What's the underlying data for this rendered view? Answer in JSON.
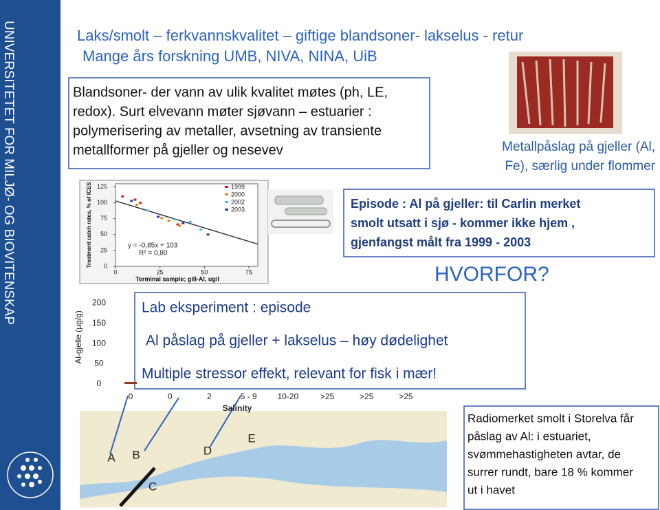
{
  "sidebar": {
    "text": "UNIVERSITETET FOR MILJØ- OG BIOVITENSKAP"
  },
  "header": {
    "title": "Laks/smolt – ferkvannskvalitet – giftige blandsoner-  lakselus  - retur",
    "subtitle": "Mange års forskning UMB, NIVA, NINA, UiB"
  },
  "intro_box": {
    "lines": [
      "Blandsoner- der vann av ulik kvalitet møtes (ph, LE,",
      "redox). Surt elvevann møter sjøvann – estuarier :",
      "polymerisering av metaller, avsetning av transiente",
      "metallformer på gjeller og nesevev"
    ]
  },
  "gill_caption": {
    "lines": [
      "Metallpåslag på gjeller (Al,",
      "Fe), særlig under flommer"
    ]
  },
  "episode_box": {
    "lines": [
      "Episode : Al på gjeller: til Carlin merket",
      "smolt  utsatt i sjø - kommer ikke hjem ,",
      "gjenfangst målt fra 1999 - 2003"
    ]
  },
  "why": "HVORFOR?",
  "lab_box": {
    "lines": [
      "Lab eksperiment : episode",
      "Al påslag på gjeller + lakselus – høy dødelighet",
      "Multiple stressor effekt, relevant for  fisk i mær!"
    ]
  },
  "map": {
    "labels": [
      "A",
      "B",
      "C",
      "D",
      "E"
    ]
  },
  "radio_box": {
    "lines": [
      "Radiomerket smolt i Storelva får",
      "påslag av Al: i estuariet,",
      "svømmehastigheten avtar,  de",
      "surrer rundt, bare 18 %  kommer",
      "ut i havet"
    ]
  },
  "chart_data": [
    {
      "type": "scatter",
      "y_label": "Treatment catch rates, % of ICES",
      "x_label": "Terminal sample; gill-Al, ug/l",
      "xlim": [
        0,
        80
      ],
      "ylim": [
        0,
        130
      ],
      "xticks": [
        0,
        25,
        50,
        75
      ],
      "yticks": [
        0,
        25,
        50,
        75,
        100,
        125
      ],
      "trendline": {
        "label": "y = -0,85x + 103",
        "slope": -0.85,
        "intercept": 103,
        "r2_label": "R² = 0,80"
      },
      "series": [
        {
          "name": "1999",
          "color": "#d0202a",
          "x": [
            4,
            11,
            14,
            35
          ],
          "values": [
            110,
            105,
            100,
            66
          ]
        },
        {
          "name": "2000",
          "color": "#f08020",
          "x": [
            12,
            26,
            30,
            36
          ],
          "values": [
            97,
            76,
            72,
            64
          ]
        },
        {
          "name": "2002",
          "color": "#40c0e0",
          "x": [
            18,
            33,
            42,
            48
          ],
          "values": [
            88,
            74,
            70,
            58
          ]
        },
        {
          "name": "2003",
          "color": "#2040b0",
          "x": [
            9,
            24,
            38,
            52
          ],
          "values": [
            103,
            78,
            68,
            50
          ]
        }
      ]
    },
    {
      "type": "bar",
      "y_label": "Al-gjelle (µg/g)",
      "x_label": "Salinity",
      "categories": [
        "0",
        "0",
        "2",
        "5 - 9",
        "10-20",
        ">25",
        ">25",
        ">25"
      ],
      "values": [
        5,
        null,
        null,
        null,
        null,
        null,
        null,
        null
      ],
      "color": "#8b3a1a",
      "ylim": [
        0,
        220
      ],
      "yticks": [
        0,
        50,
        100,
        150,
        200
      ]
    }
  ]
}
